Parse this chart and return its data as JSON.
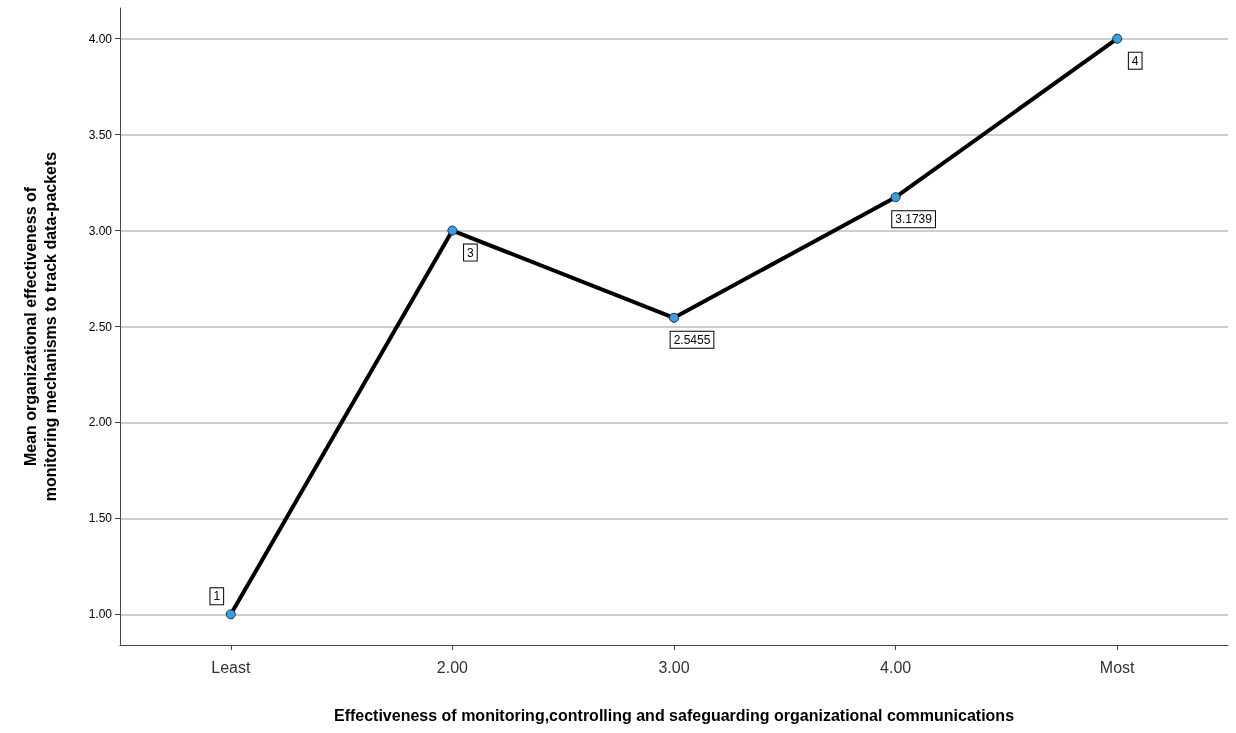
{
  "chart_data": {
    "type": "line",
    "xlabel": "Effectiveness of monitoring,controlling and safeguarding organizational communications",
    "ylabel": "Mean organizational effectiveness of monitoring mechanisms to track data-packets",
    "categories": [
      "Least",
      "2.00",
      "3.00",
      "4.00",
      "Most"
    ],
    "series": [
      {
        "color": "#000000",
        "values": [
          1,
          3,
          2.5455,
          3.1739,
          4
        ]
      }
    ],
    "ylim": [
      0.84,
      4.16
    ],
    "yticks": [
      {
        "value": 1,
        "label": "1.00"
      },
      {
        "value": 1.5,
        "label": "1.50"
      },
      {
        "value": 2,
        "label": "2.00"
      },
      {
        "value": 2.5,
        "label": "2.50"
      },
      {
        "value": 3,
        "label": "3.00"
      },
      {
        "value": 3.5,
        "label": "3.50"
      },
      {
        "value": 4,
        "label": "4.00"
      }
    ],
    "grid": "y",
    "marker": "circle",
    "line_style": "solid",
    "data_labels": true
  }
}
